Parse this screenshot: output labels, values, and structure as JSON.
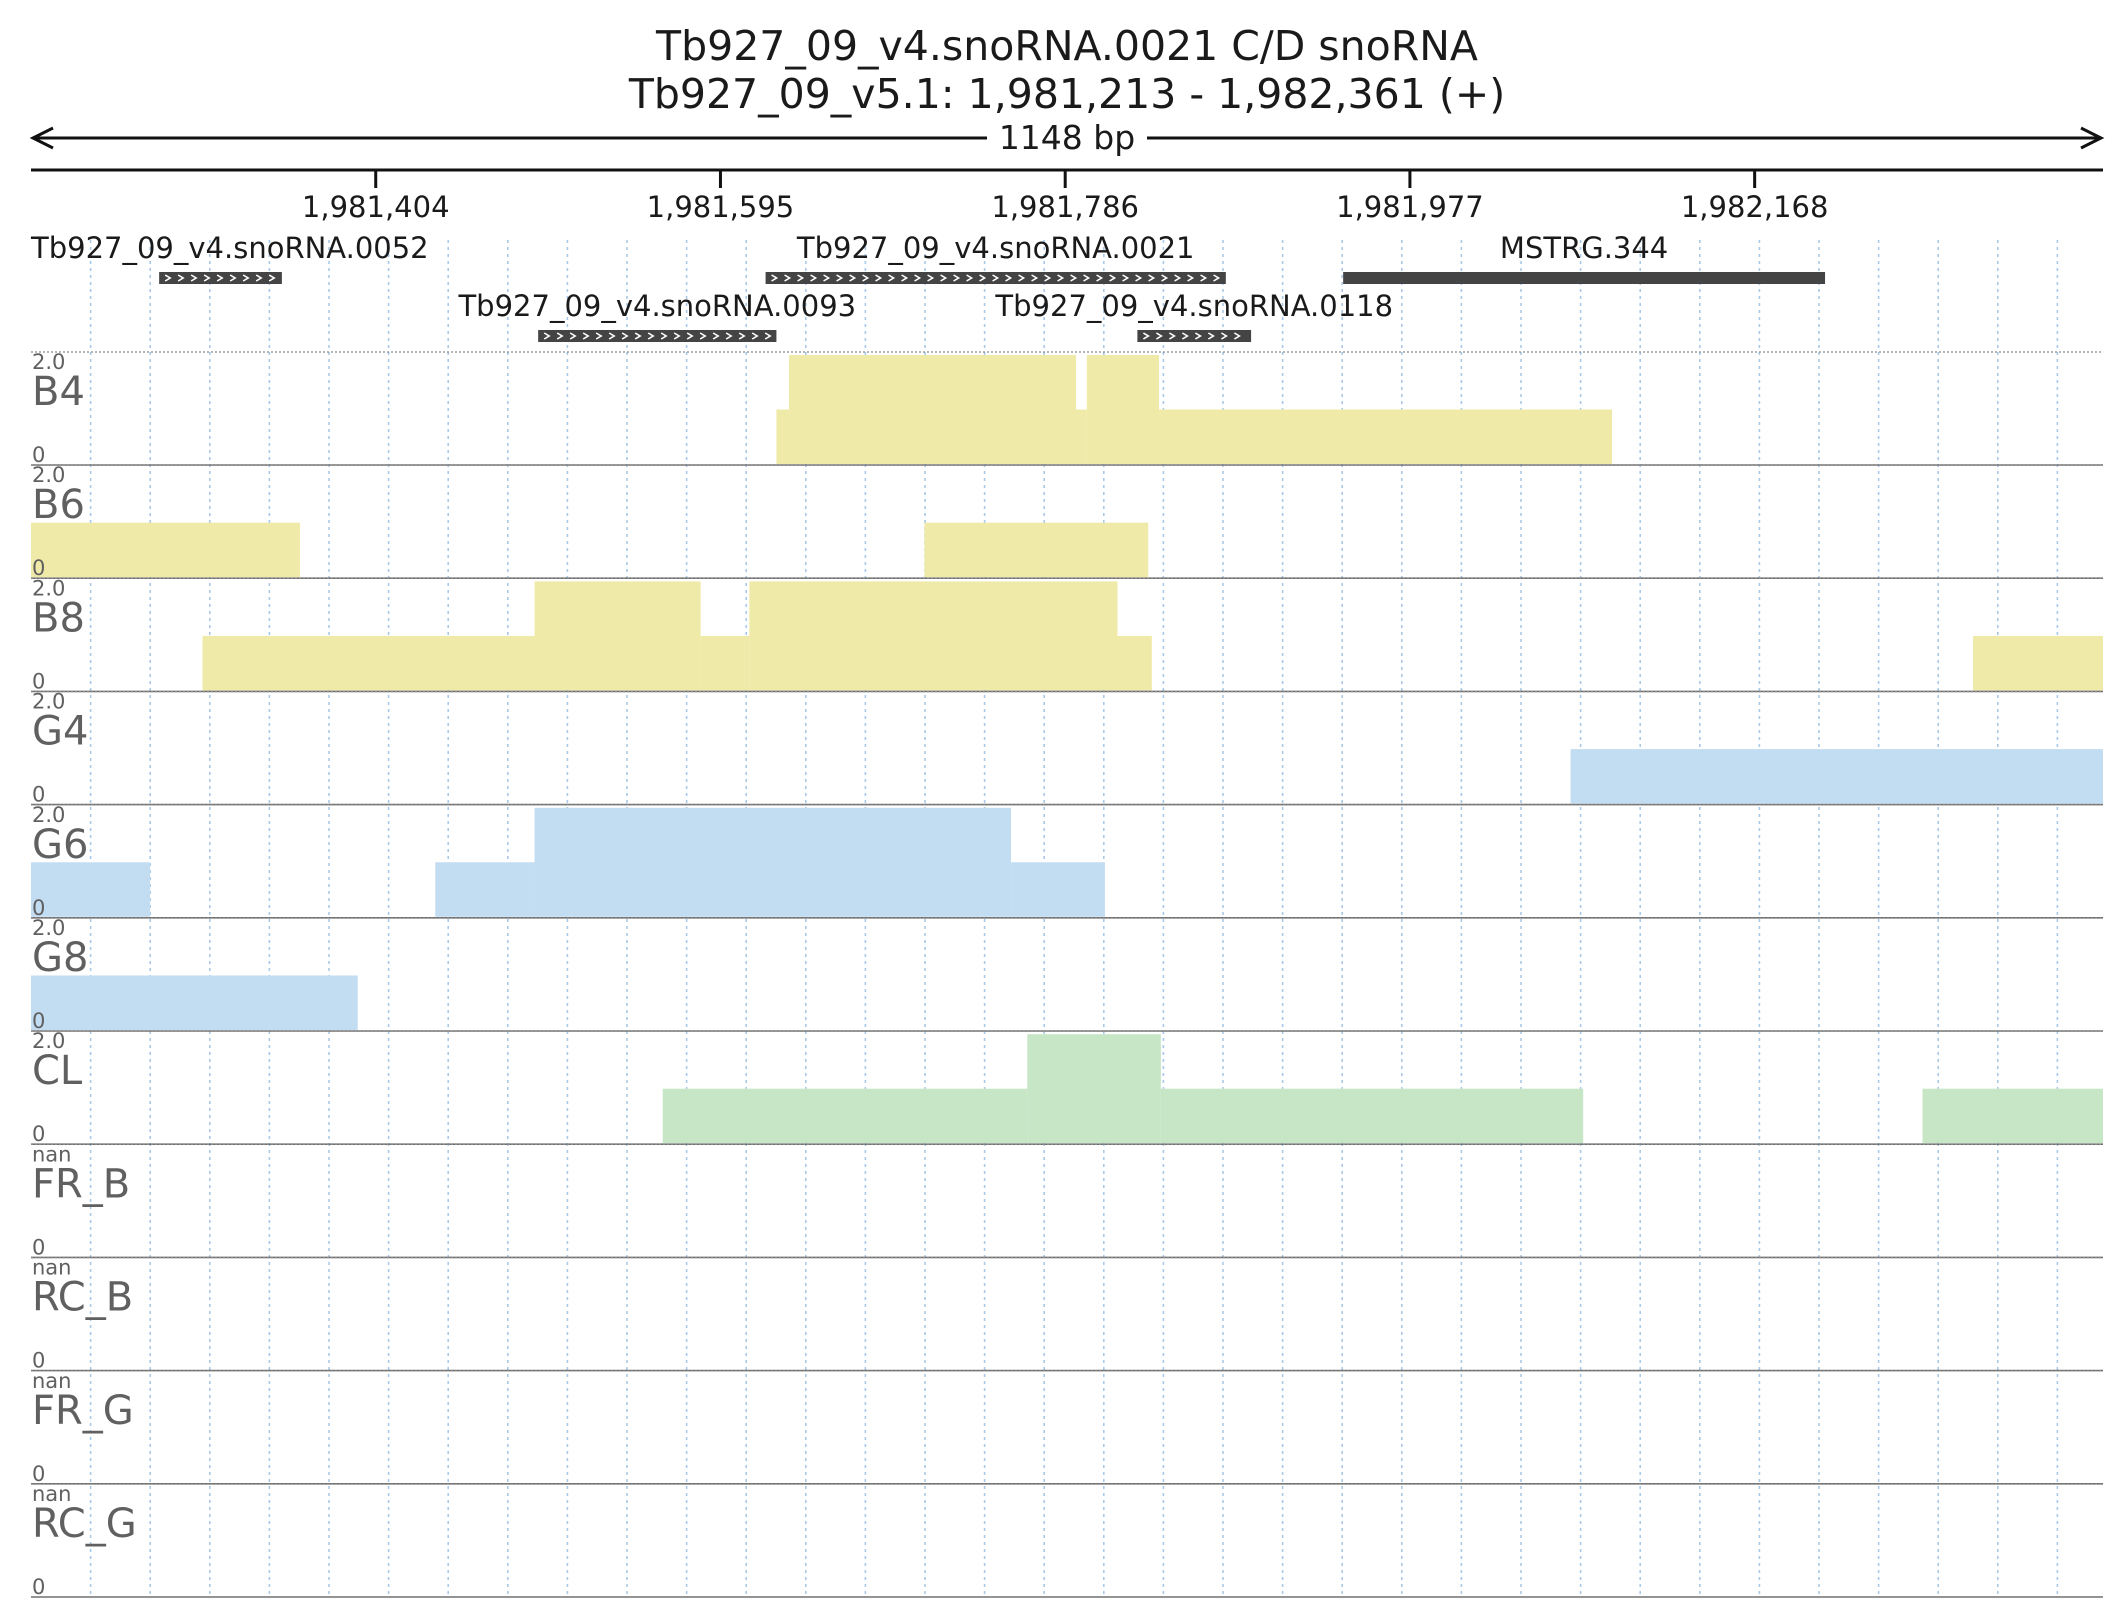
{
  "chart_data": {
    "type": "genome-browser-coverage",
    "title": "Tb927_09_v4.snoRNA.0021  C/D snoRNA",
    "subtitle": "Tb927_09_v5.1: 1,981,213 - 1,982,361 (+)",
    "length_label": "1148 bp",
    "region": {
      "chrom": "Tb927_09_v5.1",
      "start": 1981213,
      "end": 1982361,
      "strand": "+"
    },
    "ticks": [
      {
        "pos": 1981404,
        "label": "1,981,404"
      },
      {
        "pos": 1981595,
        "label": "1,981,595"
      },
      {
        "pos": 1981786,
        "label": "1,981,786"
      },
      {
        "pos": 1981977,
        "label": "1,981,977"
      },
      {
        "pos": 1982168,
        "label": "1,982,168"
      }
    ],
    "genes": [
      {
        "name": "Tb927_09_v4.snoRNA.0052",
        "start": 1981284,
        "end": 1981352,
        "strand": "+",
        "row": 0,
        "style": "arrows"
      },
      {
        "name": "Tb927_09_v4.snoRNA.0021",
        "start": 1981620,
        "end": 1981875,
        "strand": "+",
        "row": 0,
        "style": "arrows"
      },
      {
        "name": "MSTRG.344",
        "start": 1981940,
        "end": 1982207,
        "strand": "",
        "row": 0,
        "style": "solid"
      },
      {
        "name": "Tb927_09_v4.snoRNA.0093",
        "start": 1981494,
        "end": 1981626,
        "strand": "+",
        "row": 1,
        "style": "arrows"
      },
      {
        "name": "Tb927_09_v4.snoRNA.0118",
        "start": 1981826,
        "end": 1981889,
        "strand": "+",
        "row": 1,
        "style": "arrows"
      }
    ],
    "colors": {
      "yellow": "#f0eaa8",
      "blue": "#c2dcf2",
      "green": "#c6e6c6",
      "grid": "#a9c9e8",
      "gene": "#444444"
    },
    "tracks": [
      {
        "name": "B4",
        "ymax": "2.0",
        "ymin": "0",
        "color": "yellow",
        "segments": [
          [
            1981626,
            1981633,
            1
          ],
          [
            1981633,
            1981792,
            2
          ],
          [
            1981792,
            1981798,
            1
          ],
          [
            1981798,
            1981838,
            2
          ],
          [
            1981838,
            1982089,
            1
          ]
        ]
      },
      {
        "name": "B6",
        "ymax": "2.0",
        "ymin": "0",
        "color": "yellow",
        "segments": [
          [
            1981213,
            1981362,
            1
          ],
          [
            1981708,
            1981832,
            1
          ]
        ]
      },
      {
        "name": "B8",
        "ymax": "2.0",
        "ymin": "0",
        "color": "yellow",
        "segments": [
          [
            1981308,
            1981492,
            1
          ],
          [
            1981492,
            1981584,
            2
          ],
          [
            1981584,
            1981611,
            1
          ],
          [
            1981611,
            1981815,
            2
          ],
          [
            1981815,
            1981834,
            1
          ],
          [
            1982289,
            1982361,
            1
          ]
        ]
      },
      {
        "name": "G4",
        "ymax": "2.0",
        "ymin": "0",
        "color": "blue",
        "segments": [
          [
            1982066,
            1982361,
            1
          ]
        ]
      },
      {
        "name": "G6",
        "ymax": "2.0",
        "ymin": "0",
        "color": "blue",
        "segments": [
          [
            1981213,
            1981279,
            1
          ],
          [
            1981437,
            1981492,
            1
          ],
          [
            1981492,
            1981756,
            2
          ],
          [
            1981756,
            1981808,
            1
          ]
        ]
      },
      {
        "name": "G8",
        "ymax": "2.0",
        "ymin": "0",
        "color": "blue",
        "segments": [
          [
            1981213,
            1981394,
            1
          ]
        ]
      },
      {
        "name": "CL",
        "ymax": "2.0",
        "ymin": "0",
        "color": "green",
        "segments": [
          [
            1981563,
            1981765,
            1
          ],
          [
            1981765,
            1981839,
            2
          ],
          [
            1981839,
            1982073,
            1
          ],
          [
            1982261,
            1982361,
            1
          ]
        ]
      },
      {
        "name": "FR_B",
        "ymax": "nan",
        "ymin": "0",
        "color": "yellow",
        "segments": []
      },
      {
        "name": "RC_B",
        "ymax": "nan",
        "ymin": "0",
        "color": "yellow",
        "segments": []
      },
      {
        "name": "FR_G",
        "ymax": "nan",
        "ymin": "0",
        "color": "blue",
        "segments": []
      },
      {
        "name": "RC_G",
        "ymax": "nan",
        "ymin": "0",
        "color": "blue",
        "segments": []
      }
    ]
  }
}
